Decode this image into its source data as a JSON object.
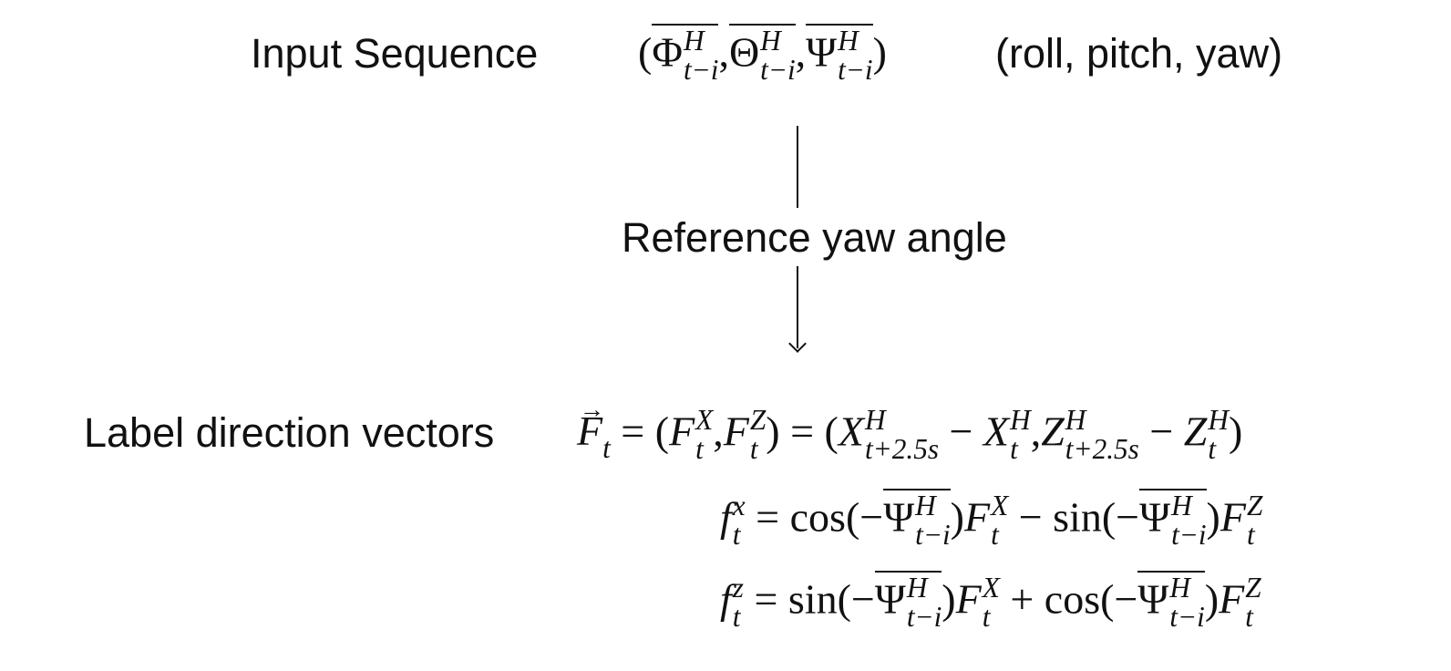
{
  "input": {
    "label": "Input Sequence",
    "symbols": [
      "Φ",
      "Θ",
      "Ψ"
    ],
    "superscript": "H",
    "subscript": "t−i",
    "annotation": "(roll, pitch, yaw)"
  },
  "middle": {
    "label": "Reference yaw angle"
  },
  "output": {
    "label": "Label direction vectors",
    "eq1": {
      "lhs": "F",
      "lhs_sub": "t",
      "comp1": "F",
      "comp1_sup": "X",
      "comp2": "F",
      "comp2_sup": "Z",
      "sub_t": "t",
      "x_var": "X",
      "z_var": "Z",
      "sup_h": "H",
      "sub_future": "t+2.5s"
    },
    "eq2": {
      "lhs": "f",
      "lhs_sup": "x",
      "lhs_sub": "t",
      "fn_a": "cos",
      "op": "−",
      "fn_b": "sin",
      "angle": "Ψ",
      "angle_sup": "H",
      "angle_sub": "t−i",
      "f_a_sup": "X",
      "f_b_sup": "Z"
    },
    "eq3": {
      "lhs": "f",
      "lhs_sup": "z",
      "lhs_sub": "t",
      "fn_a": "sin",
      "op": "+",
      "fn_b": "cos",
      "angle": "Ψ",
      "angle_sup": "H",
      "angle_sub": "t−i",
      "f_a_sup": "X",
      "f_b_sup": "Z"
    }
  }
}
